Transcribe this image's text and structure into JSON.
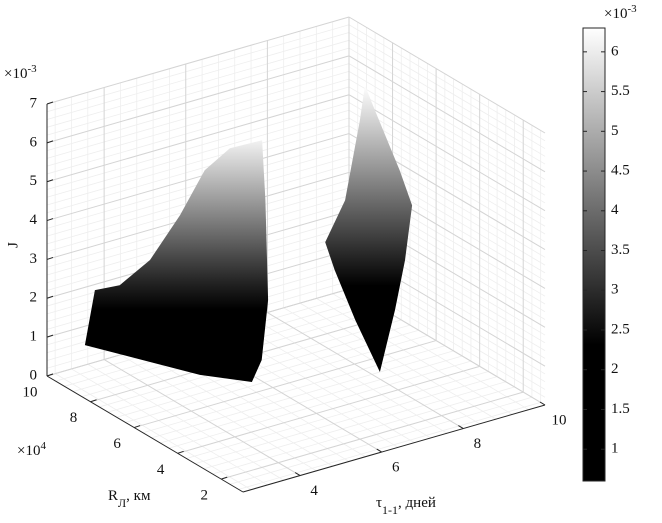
{
  "chart_data": {
    "type": "surface3d",
    "zlabel": "J",
    "zscale": {
      "base": "×10",
      "exponent": "-3"
    },
    "ylabel": {
      "main": "R",
      "sub": "Л",
      "rest": ", км"
    },
    "yscale": {
      "base": "×10",
      "exponent": "4"
    },
    "xlabel": {
      "main": "τ",
      "sub": "1-1",
      "rest": ", дней"
    },
    "xlim": [
      2.6,
      10
    ],
    "xticks": [
      4,
      6,
      8,
      10
    ],
    "ylim": [
      1,
      10
    ],
    "yticks": [
      2,
      4,
      6,
      8,
      10
    ],
    "zlim": [
      0,
      7
    ],
    "zticks": [
      0,
      1,
      2,
      3,
      4,
      5,
      6,
      7
    ],
    "grid": true,
    "colormap": "gray",
    "clim": [
      0.6,
      6.3
    ],
    "cticks": [
      1,
      1.5,
      2,
      2.5,
      3,
      3.5,
      4,
      4.5,
      5,
      5.5,
      6
    ],
    "colorbar_scale": {
      "base": "×10",
      "exponent": "-3"
    },
    "surfaces": [
      {
        "tau": [
          3.22,
          3.4,
          3.73,
          4.28,
          4.94,
          5.52,
          5.79,
          6.11,
          6.12,
          6.63,
          5.61,
          5.16,
          4.5,
          3.93
        ],
        "R": [
          9.42,
          9.3,
          8.78,
          8.42,
          8.28,
          8.23,
          7.58,
          6.7,
          6.57,
          7.4,
          5.78,
          5.39,
          6.54,
          7.76
        ],
        "J": [
          0.8,
          2.2,
          2.4,
          3.0,
          4.0,
          5.0,
          5.7,
          6.1,
          4.6,
          1.6,
          0.9,
          0.6,
          0.6,
          0.7
        ]
      },
      {
        "tau": [
          7.34,
          8.08,
          8.82,
          9.12,
          9.13,
          8.73,
          8.5,
          9.02,
          8.55,
          7.55,
          7.94,
          7.91
        ],
        "R": [
          6.11,
          6.58,
          7.29,
          7.62,
          7.18,
          5.29,
          4.29,
          5.59,
          5.17,
          3.99,
          5.85,
          6.74
        ],
        "J": [
          3.3,
          4.0,
          5.6,
          6.3,
          5.8,
          5.0,
          4.5,
          2.5,
          1.5,
          0.6,
          1.2,
          2.2
        ]
      }
    ]
  }
}
